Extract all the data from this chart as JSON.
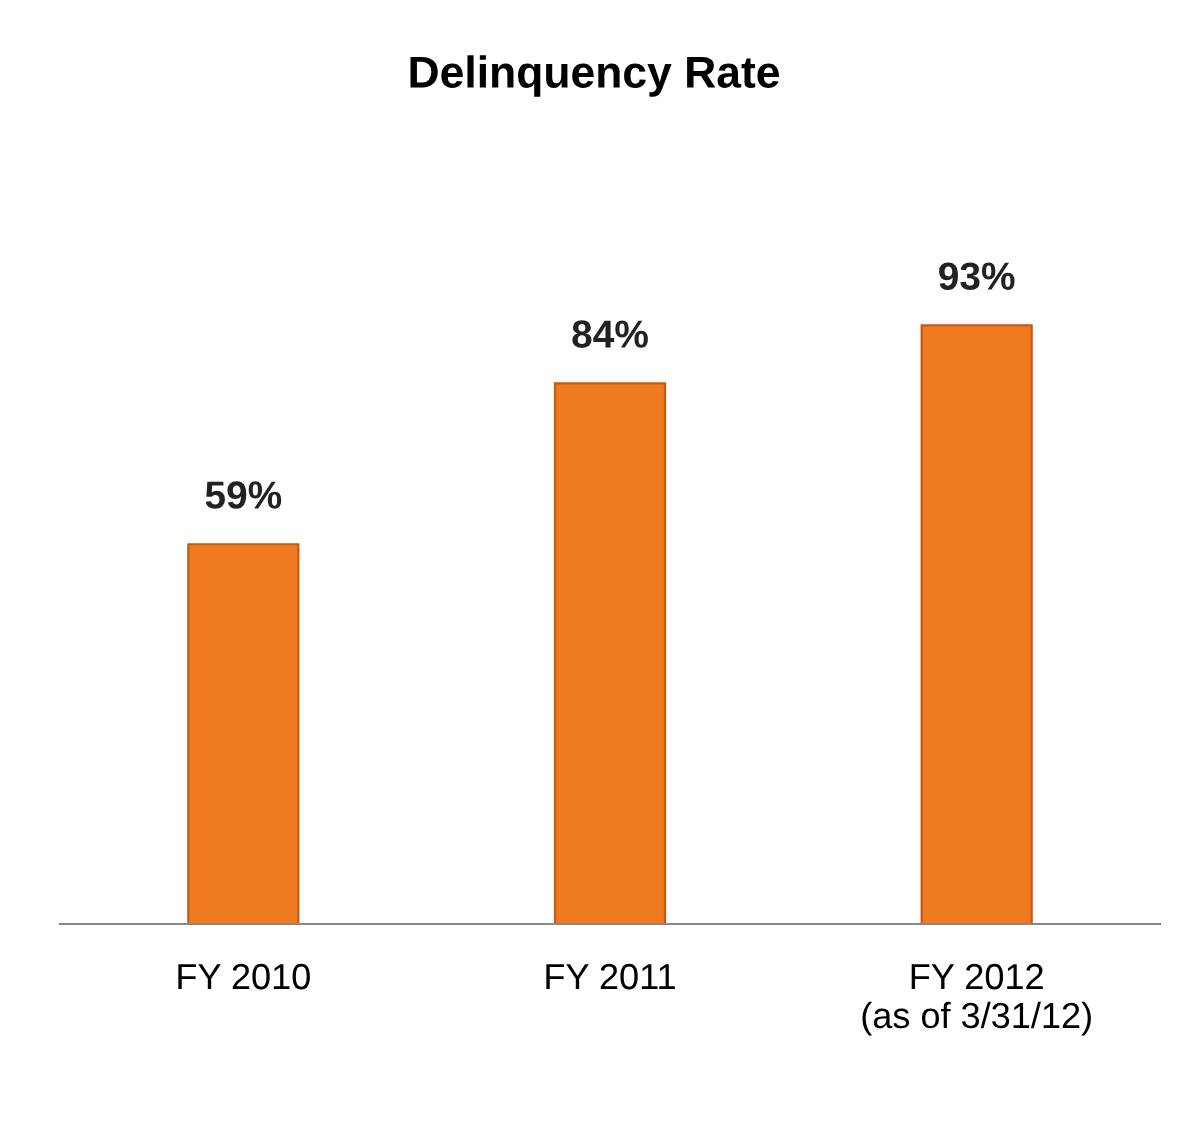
{
  "chart_data": {
    "type": "bar",
    "title": "Delinquency Rate",
    "categories": [
      "FY 2010",
      "FY 2011",
      "FY 2012\n(as of 3/31/12)"
    ],
    "values": [
      59,
      84,
      93
    ],
    "value_labels": [
      "59%",
      "84%",
      "93%"
    ],
    "color": "#f07a1e",
    "grid": false,
    "legend": false
  }
}
